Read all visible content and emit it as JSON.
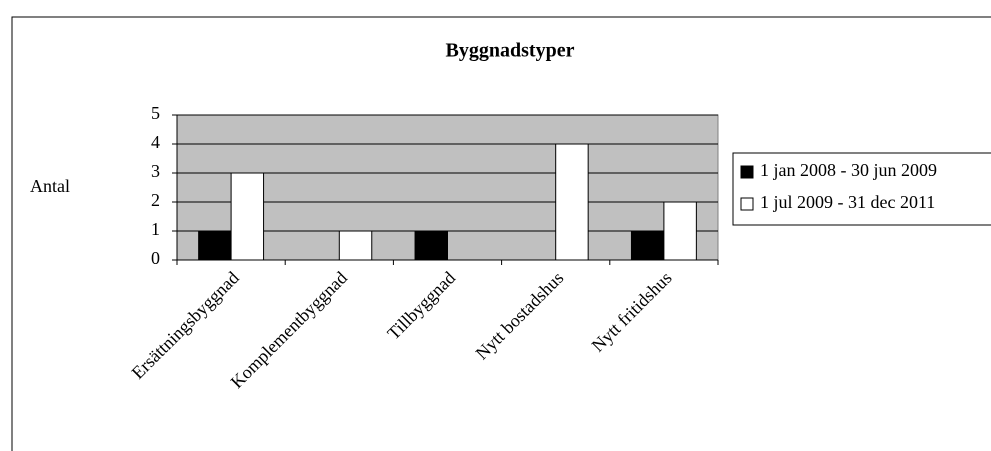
{
  "chart_data": {
    "type": "bar",
    "title": "Byggnadstyper",
    "y_label": "Antal",
    "categories": [
      "Ersättningsbyggnad",
      "Komplementbyggnad",
      "Tillbyggnad",
      "Nytt bostadshus",
      "Nytt fritidshus"
    ],
    "series": [
      {
        "name": "1 jan 2008 - 30 jun 2009",
        "color": "#000000",
        "values": [
          1,
          0,
          1,
          0,
          1
        ]
      },
      {
        "name": "1 jul 2009 - 31 dec 2011",
        "color": "#ffffff",
        "values": [
          3,
          1,
          0,
          4,
          2
        ]
      }
    ],
    "ylim": [
      0,
      5
    ],
    "yticks": [
      0,
      1,
      2,
      3,
      4,
      5
    ],
    "grid": true,
    "legend": "right",
    "plot_background": "#c0c0c0"
  }
}
